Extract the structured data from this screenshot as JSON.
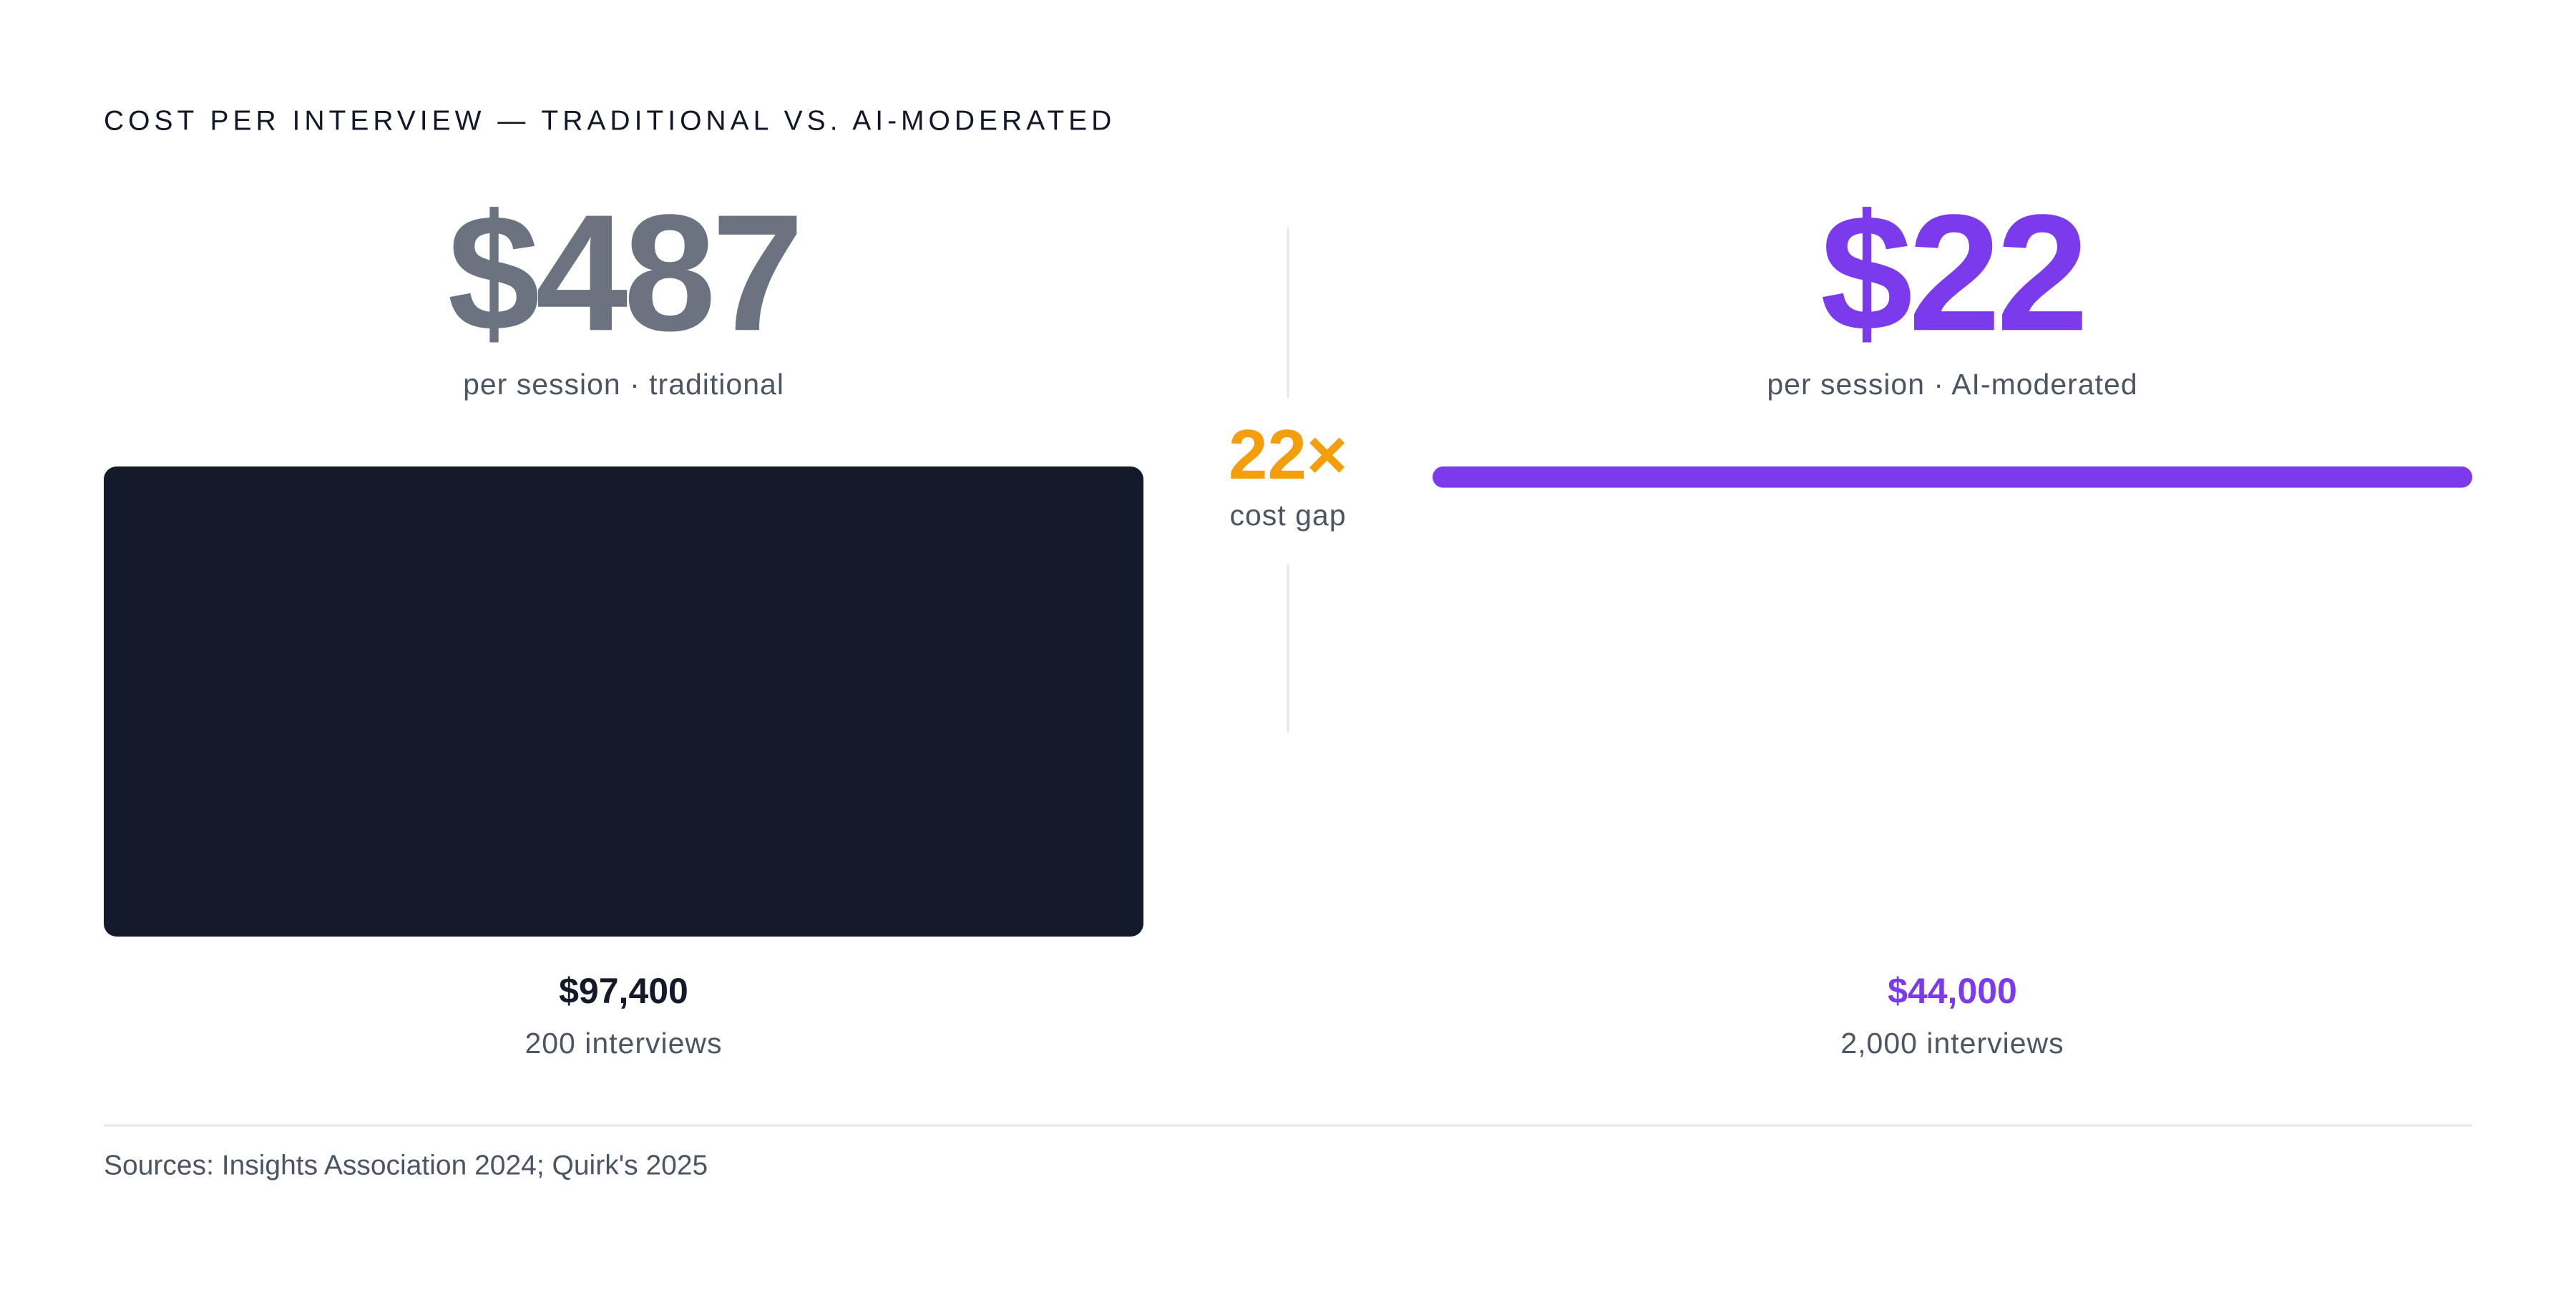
{
  "chart_data": {
    "type": "bar",
    "title": "COST PER INTERVIEW — TRADITIONAL VS. AI-MODERATED",
    "categories": [
      "per session · traditional",
      "per session · AI-moderated"
    ],
    "values": [
      487,
      22
    ],
    "value_labels": [
      "$487",
      "$22"
    ],
    "colors": [
      "#141a29",
      "#7c3aed"
    ],
    "label_colors": [
      "#6b7280",
      "#7c3aed"
    ],
    "total_labels": [
      "$97,400",
      "$44,000"
    ],
    "interview_labels": [
      "200 interviews",
      "2,000 interviews"
    ],
    "ratio_label": "22×",
    "ratio_caption": "cost gap",
    "source": "Sources: Insights Association 2024; Quirk's 2025"
  }
}
